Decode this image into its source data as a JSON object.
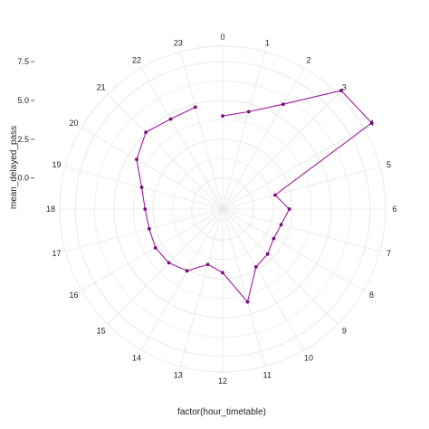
{
  "chart_data": {
    "type": "line",
    "coord": "polar",
    "x": [
      "0",
      "1",
      "2",
      "3",
      "4",
      "5",
      "6",
      "7",
      "8",
      "9",
      "10",
      "11",
      "12",
      "13",
      "14",
      "15",
      "16",
      "17",
      "18",
      "19",
      "20",
      "21",
      "22",
      "23"
    ],
    "values": [
      4.0,
      4.5,
      5.8,
      8.8,
      9.1,
      1.5,
      2.3,
      1.9,
      1.8,
      2.1,
      2.3,
      4.2,
      2.1,
      1.7,
      2.6,
      2.9,
      3.0,
      2.9,
      3.0,
      3.4,
      4.4,
      5.0,
      4.7,
      4.8
    ],
    "xlabel": "factor(hour_timetable)",
    "ylabel": "mean_delayed_pass",
    "yticks": [
      "0.0",
      "2.5",
      "5.0",
      "7.5"
    ],
    "ylim": [
      -2.0,
      8.5
    ],
    "grid": true,
    "line_color": "#9b1a9b",
    "point_color": "#7a0a7a",
    "grid_color": "#e6e6e6"
  }
}
